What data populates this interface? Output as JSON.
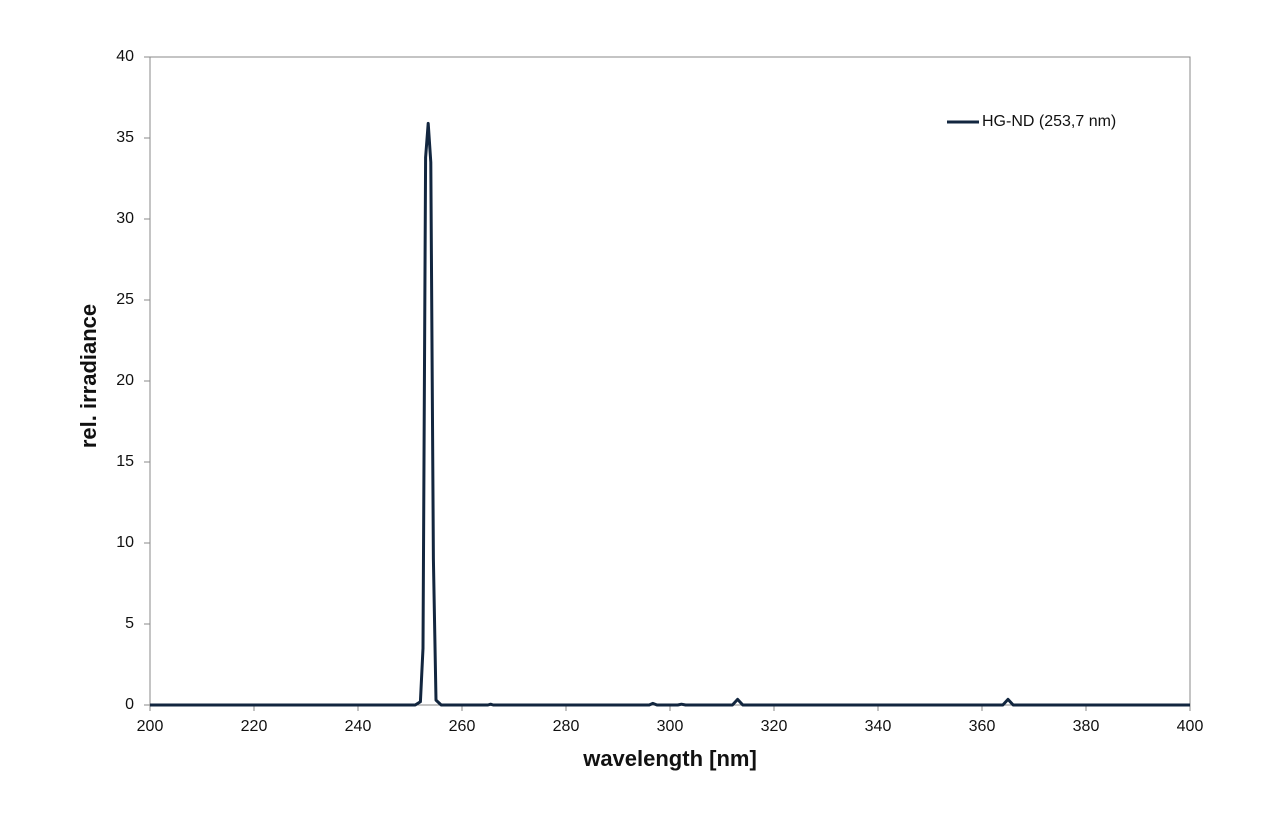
{
  "chart_data": {
    "type": "line",
    "x_label": "wavelength [nm]",
    "y_label": "rel. irradiance",
    "x": [
      200,
      251,
      252,
      252.5,
      253,
      253.5,
      254,
      254.5,
      255,
      256,
      265,
      265.5,
      266,
      296,
      296.7,
      297.5,
      301.5,
      302.2,
      303,
      312,
      313,
      314,
      364,
      365,
      366,
      400
    ],
    "series": [
      {
        "name": "HG-ND (253,7 nm)",
        "color": "#12263f",
        "values": [
          0,
          0,
          0.2,
          3.5,
          33.8,
          35.9,
          33.5,
          9,
          0.3,
          0,
          0,
          0.05,
          0,
          0,
          0.1,
          0,
          0,
          0.05,
          0,
          0,
          0.35,
          0,
          0,
          0.35,
          0,
          0
        ]
      }
    ],
    "xlim": [
      200,
      400
    ],
    "xticks": [
      200,
      220,
      240,
      260,
      280,
      300,
      320,
      340,
      360,
      380,
      400
    ],
    "ylim": [
      0,
      40
    ],
    "yticks": [
      0,
      5,
      10,
      15,
      20,
      25,
      30,
      35,
      40
    ],
    "legend": "upper right"
  }
}
